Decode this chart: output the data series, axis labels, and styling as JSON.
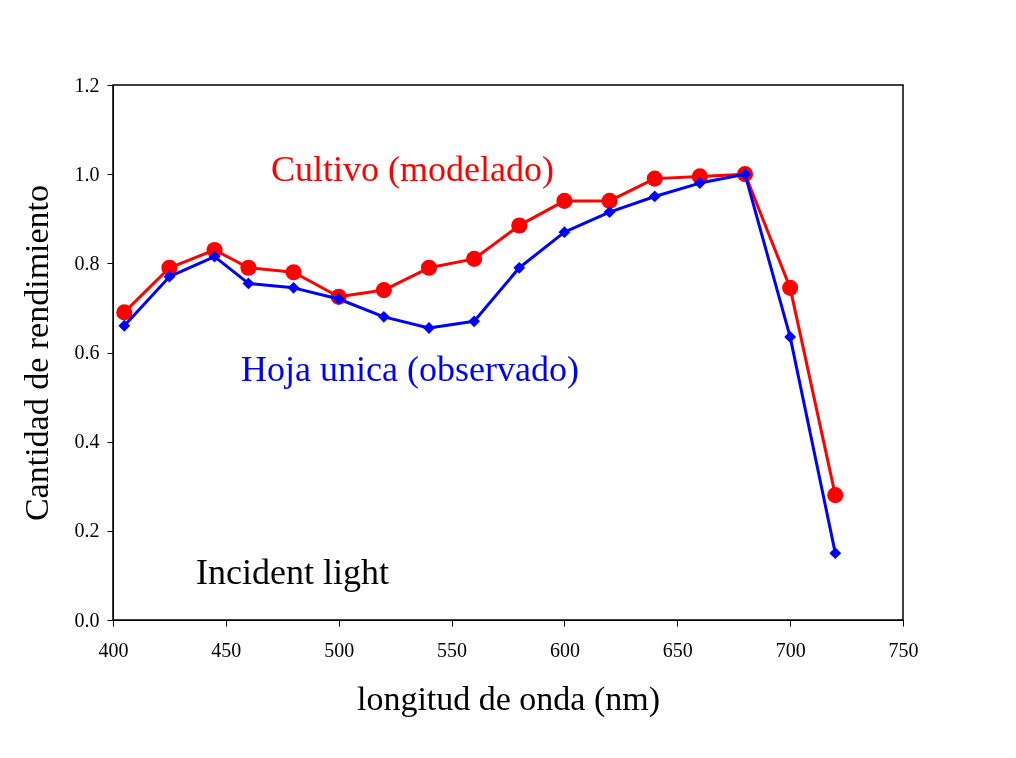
{
  "chart_data": {
    "type": "line",
    "xlabel": "longitud de onda (nm)",
    "ylabel": "Cantidad de rendimiento",
    "x": [
      405,
      425,
      445,
      460,
      480,
      500,
      520,
      540,
      560,
      580,
      600,
      620,
      640,
      660,
      680,
      700,
      720
    ],
    "series": [
      {
        "name": "Cultivo (modelado)",
        "color": "#ff0000",
        "marker": "circle",
        "values": [
          0.69,
          0.79,
          0.83,
          0.79,
          0.78,
          0.725,
          0.74,
          0.79,
          0.81,
          0.885,
          0.94,
          0.94,
          0.99,
          0.995,
          1.0,
          0.745,
          0.28
        ]
      },
      {
        "name": "Hoja unica (observado)",
        "color": "#0000ff",
        "marker": "diamond",
        "values": [
          0.66,
          0.77,
          0.815,
          0.755,
          0.745,
          0.72,
          0.68,
          0.655,
          0.67,
          0.79,
          0.87,
          0.915,
          0.95,
          0.98,
          1.0,
          0.635,
          0.15
        ]
      }
    ],
    "xlim": [
      400,
      750
    ],
    "xticks": [
      400,
      450,
      500,
      550,
      600,
      650,
      700,
      750
    ],
    "ylim": [
      0,
      1.2
    ],
    "yticks": [
      {
        "value": 0,
        "label": "0.0"
      },
      {
        "value": 0.2,
        "label": "0.2"
      },
      {
        "value": 0.4,
        "label": "0.4"
      },
      {
        "value": 0.6,
        "label": "0.6"
      },
      {
        "value": 0.8,
        "label": "0.8"
      },
      {
        "value": 1.0,
        "label": "1.0"
      },
      {
        "value": 1.2,
        "label": "1.2"
      }
    ],
    "annotations": [
      "Incident light"
    ],
    "grid": false,
    "legend": false,
    "line_style": "solid"
  }
}
